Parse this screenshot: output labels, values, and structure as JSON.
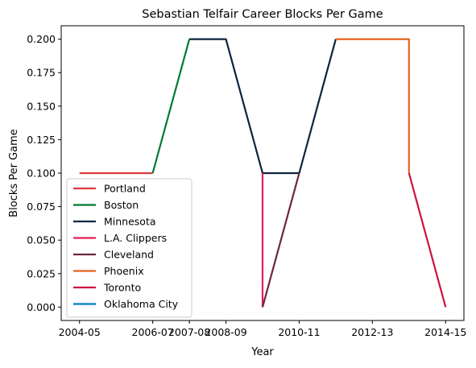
{
  "chart_data": {
    "type": "line",
    "title": "Sebastian Telfair Career Blocks Per Game",
    "xlabel": "Year",
    "ylabel": "Blocks Per Game",
    "x_ticks": [
      "2004-05",
      "2006-07",
      "2007-08",
      "2008-09",
      "2010-11",
      "2012-13",
      "2014-15"
    ],
    "ylim": [
      -0.01,
      0.21
    ],
    "y_ticks": [
      "0.000",
      "0.025",
      "0.050",
      "0.075",
      "0.100",
      "0.125",
      "0.150",
      "0.175",
      "0.200"
    ],
    "grid": false,
    "legend_position": "lower-left",
    "series": [
      {
        "name": "Portland",
        "color": "#e03a3e",
        "points": [
          {
            "x": "2004-05",
            "y": 0.1
          },
          {
            "x": "2005-06",
            "y": 0.1
          },
          {
            "x": "2006-07",
            "y": 0.1
          }
        ]
      },
      {
        "name": "Boston",
        "color": "#007a33",
        "points": [
          {
            "x": "2006-07",
            "y": 0.1
          },
          {
            "x": "2007-08",
            "y": 0.2
          }
        ]
      },
      {
        "name": "Minnesota",
        "color": "#0c2340",
        "points": [
          {
            "x": "2007-08",
            "y": 0.2
          },
          {
            "x": "2008-09",
            "y": 0.2
          },
          {
            "x": "2009-10",
            "y": 0.1
          },
          {
            "x": "2010-11",
            "y": 0.1
          },
          {
            "x": "2011-12",
            "y": 0.2
          }
        ]
      },
      {
        "name": "L.A. Clippers",
        "color": "#e41e56",
        "points": [
          {
            "x": "2009-10",
            "y": 0.1
          },
          {
            "x": "2009-10",
            "y": 0.0
          }
        ]
      },
      {
        "name": "Cleveland",
        "color": "#6f263d",
        "points": [
          {
            "x": "2009-10",
            "y": 0.0
          },
          {
            "x": "2010-11",
            "y": 0.1
          }
        ]
      },
      {
        "name": "Phoenix",
        "color": "#e56020",
        "points": [
          {
            "x": "2011-12",
            "y": 0.2
          },
          {
            "x": "2012-13",
            "y": 0.2
          },
          {
            "x": "2013-14",
            "y": 0.2
          },
          {
            "x": "2013-14",
            "y": 0.1
          }
        ]
      },
      {
        "name": "Toronto",
        "color": "#ce1141",
        "points": [
          {
            "x": "2013-14",
            "y": 0.1
          },
          {
            "x": "2014-15",
            "y": 0.0
          }
        ]
      },
      {
        "name": "Oklahoma City",
        "color": "#007ac1",
        "points": [
          {
            "x": "2014-15",
            "y": 0.0
          }
        ]
      }
    ]
  }
}
